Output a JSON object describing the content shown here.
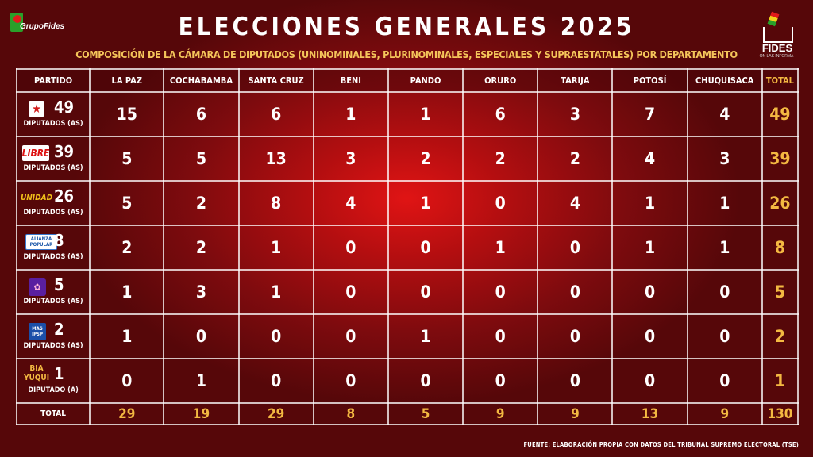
{
  "logo_left": "GrupoFides",
  "logo_right": {
    "word": "FIDES",
    "sub": "ON LAS INFORMA"
  },
  "title": "ELECCIONES GENERALES 2025",
  "subtitle": "COMPOSICIÓN DE LA CÁMARA DE DIPUTADOS (UNINOMINALES, PLURINOMINALES, ESPECIALES Y SUPRAESTATALES) POR DEPARTAMENTO",
  "header": [
    "PARTIDO",
    "LA PAZ",
    "COCHABAMBA",
    "SANTA CRUZ",
    "BENI",
    "PANDO",
    "ORURO",
    "TARIJA",
    "POTOSÍ",
    "CHUQUISACA",
    "TOTAL"
  ],
  "rows": [
    {
      "badge": "★",
      "badge_icon": "pdc-star-logo",
      "count": "49",
      "label": "DIPUTADOS (AS)",
      "values": [
        "15",
        "6",
        "6",
        "1",
        "1",
        "6",
        "3",
        "7",
        "4"
      ],
      "total": "49"
    },
    {
      "badge": "LIBRE",
      "badge_icon": "libre-logo",
      "count": "39",
      "label": "DIPUTADOS (AS)",
      "values": [
        "5",
        "5",
        "13",
        "3",
        "2",
        "2",
        "2",
        "4",
        "3"
      ],
      "total": "39"
    },
    {
      "badge": "UNIDAD",
      "badge_icon": "unidad-logo",
      "count": "26",
      "label": "DIPUTADOS (AS)",
      "values": [
        "5",
        "2",
        "8",
        "4",
        "1",
        "0",
        "4",
        "1",
        "1"
      ],
      "total": "26"
    },
    {
      "badge": "ALIANZA POPULAR",
      "badge_icon": "alianza-popular-logo",
      "count": "8",
      "label": "DIPUTADOS (AS)",
      "values": [
        "2",
        "2",
        "1",
        "0",
        "0",
        "1",
        "0",
        "1",
        "1"
      ],
      "total": "8"
    },
    {
      "badge": "✿",
      "badge_icon": "sumate-logo",
      "count": "5",
      "label": "DIPUTADOS (AS)",
      "values": [
        "1",
        "3",
        "1",
        "0",
        "0",
        "0",
        "0",
        "0",
        "0"
      ],
      "total": "5"
    },
    {
      "badge": "MAS IPSP",
      "badge_icon": "mas-ipsp-logo",
      "count": "2",
      "label": "DIPUTADOS (AS)",
      "values": [
        "1",
        "0",
        "0",
        "0",
        "1",
        "0",
        "0",
        "0",
        "0"
      ],
      "total": "2"
    },
    {
      "badge": "BIA YUQUI",
      "badge_icon": "bia-yuqui-logo",
      "count": "1",
      "label": "DIPUTADO (A)",
      "values": [
        "0",
        "1",
        "0",
        "0",
        "0",
        "0",
        "0",
        "0",
        "0"
      ],
      "total": "1"
    }
  ],
  "footer": {
    "label": "TOTAL",
    "values": [
      "29",
      "19",
      "29",
      "8",
      "5",
      "9",
      "9",
      "13",
      "9"
    ],
    "total": "130"
  },
  "source": "FUENTE: ELABORACIÓN PROPIA CON DATOS DEL TRIBUNAL SUPREMO ELECTORAL (TSE)",
  "colors": {
    "accent": "#f4b942",
    "background_center": "#e01414",
    "background_edge": "#560709"
  }
}
